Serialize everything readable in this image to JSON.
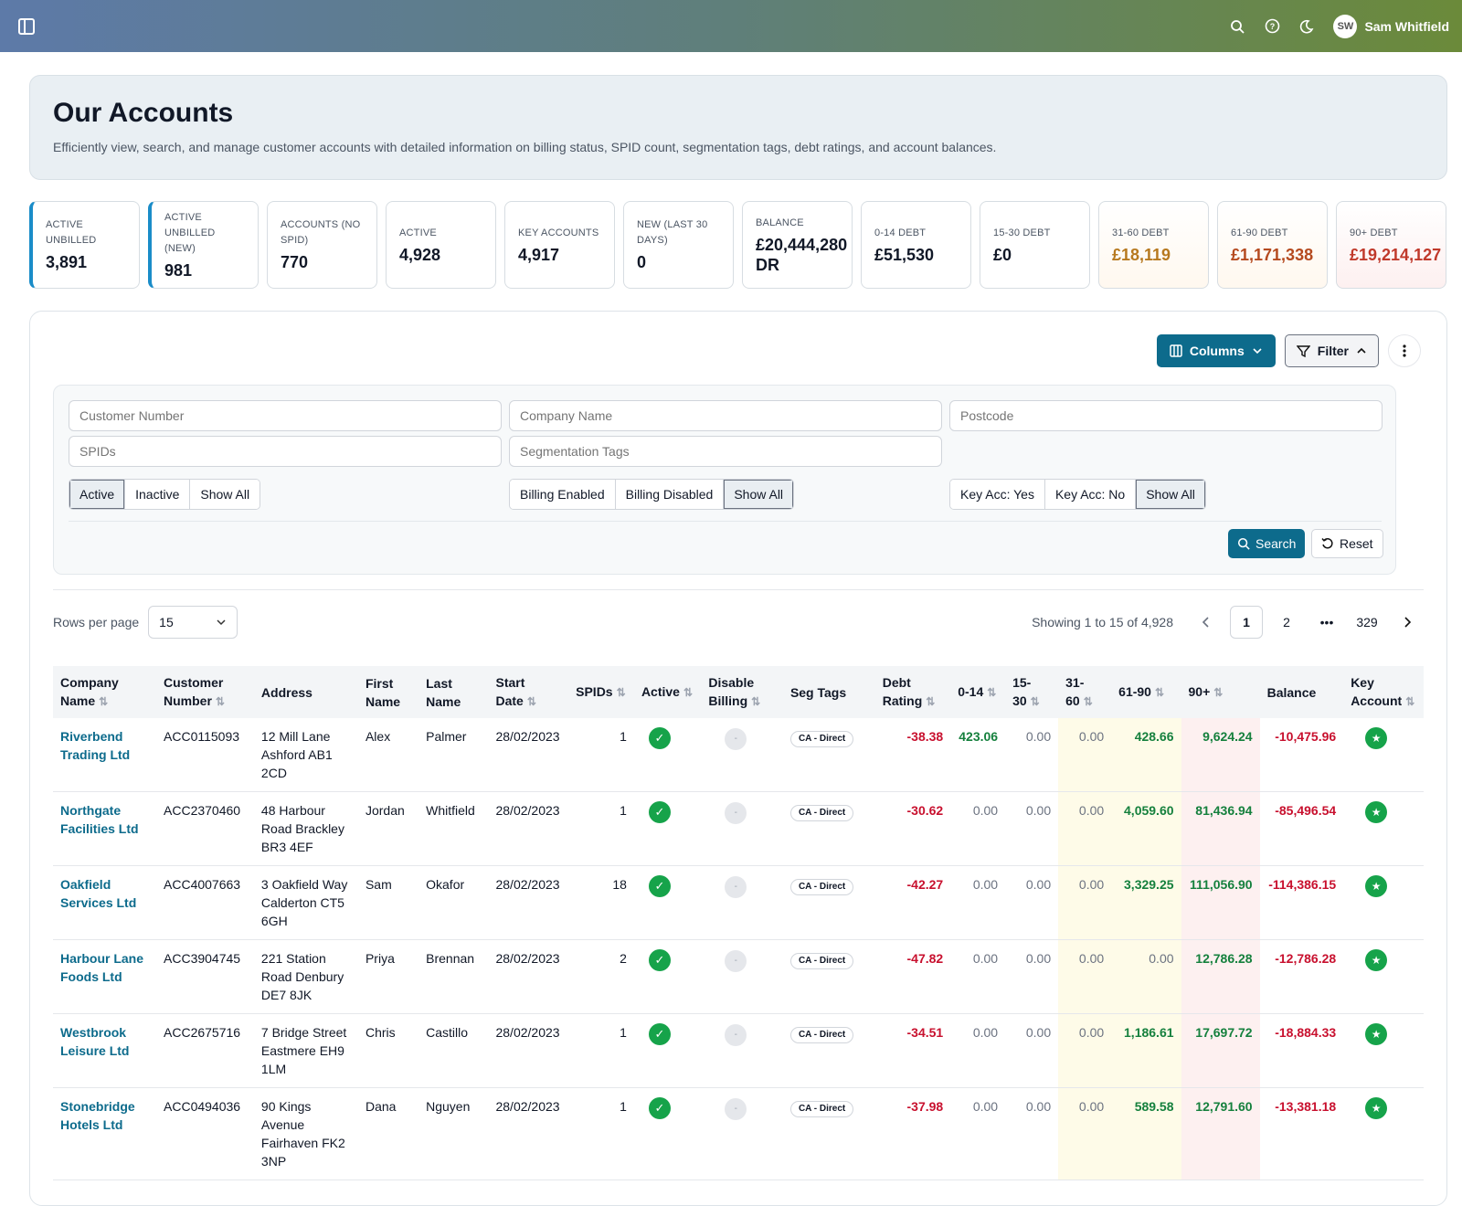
{
  "topbar": {
    "user_initials": "SW",
    "user_name": "Sam Whitfield",
    "icons": [
      "sidebar-toggle-icon",
      "search-icon",
      "help-icon",
      "moon-icon"
    ]
  },
  "hero": {
    "title": "Our Accounts",
    "description": "Efficiently view, search, and manage customer accounts with detailed information on billing status, SPID count, segmentation tags, debt ratings, and account balances."
  },
  "stats": [
    {
      "label": "ACTIVE UNBILLED",
      "value": "3,891"
    },
    {
      "label": "ACTIVE UNBILLED (NEW)",
      "value": "981"
    },
    {
      "label": "ACCOUNTS (NO SPID)",
      "value": "770"
    },
    {
      "label": "ACTIVE",
      "value": "4,928"
    },
    {
      "label": "KEY ACCOUNTS",
      "value": "4,917"
    },
    {
      "label": "NEW (LAST 30 DAYS)",
      "value": "0"
    },
    {
      "label": "BALANCE",
      "value": "£20,444,280 DR"
    },
    {
      "label": "0-14 DEBT",
      "value": "£51,530"
    },
    {
      "label": "15-30 DEBT",
      "value": "£0"
    },
    {
      "label": "31-60 DEBT",
      "value": "£18,119"
    },
    {
      "label": "61-90 DEBT",
      "value": "£1,171,338"
    },
    {
      "label": "90+ DEBT",
      "value": "£19,214,127"
    }
  ],
  "toolbar": {
    "columns_label": "Columns",
    "filter_label": "Filter"
  },
  "filters": {
    "customer_number_ph": "Customer Number",
    "company_name_ph": "Company Name",
    "postcode_ph": "Postcode",
    "spids_ph": "SPIDs",
    "seg_tags_ph": "Segmentation Tags",
    "status": [
      "Active",
      "Inactive",
      "Show All"
    ],
    "billing": [
      "Billing Enabled",
      "Billing Disabled",
      "Show All"
    ],
    "keyacc": [
      "Key Acc: Yes",
      "Key Acc: No",
      "Show All"
    ],
    "search_label": "Search",
    "reset_label": "Reset"
  },
  "pagination": {
    "rows_per_page_label": "Rows per page",
    "rows_per_page": "15",
    "showing": "Showing 1 to 15 of 4,928",
    "pages": [
      "1",
      "2",
      "•••",
      "329"
    ]
  },
  "table": {
    "headers": {
      "company": "Company Name",
      "custno": "Customer Number",
      "address": "Address",
      "first": "First Name",
      "last": "Last Name",
      "start": "Start Date",
      "spids": "SPIDs",
      "active": "Active",
      "disable": "Disable Billing",
      "seg": "Seg Tags",
      "rating": "Debt Rating",
      "d0": "0-14",
      "d15": "15-30",
      "d31": "31-60",
      "d61": "61-90",
      "d90": "90+",
      "balance": "Balance",
      "key": "Key Account"
    },
    "rows": [
      {
        "company": "Riverbend Trading Ltd",
        "custno": "ACC0115093",
        "address": "12 Mill Lane Ashford AB1 2CD",
        "first": "Alex",
        "last": "Palmer",
        "start": "28/02/2023",
        "spids": "1",
        "seg": "CA - Direct",
        "rating": "-38.38",
        "d0": "423.06",
        "d15": "0.00",
        "d31": "0.00",
        "d61": "428.66",
        "d90": "9,624.24",
        "balance": "-10,475.96"
      },
      {
        "company": "Northgate Facilities Ltd",
        "custno": "ACC2370460",
        "address": "48 Harbour Road Brackley BR3 4EF",
        "first": "Jordan",
        "last": "Whitfield",
        "start": "28/02/2023",
        "spids": "1",
        "seg": "CA - Direct",
        "rating": "-30.62",
        "d0": "0.00",
        "d15": "0.00",
        "d31": "0.00",
        "d61": "4,059.60",
        "d90": "81,436.94",
        "balance": "-85,496.54"
      },
      {
        "company": "Oakfield Services Ltd",
        "custno": "ACC4007663",
        "address": "3 Oakfield Way Calderton CT5 6GH",
        "first": "Sam",
        "last": "Okafor",
        "start": "28/02/2023",
        "spids": "18",
        "seg": "CA - Direct",
        "rating": "-42.27",
        "d0": "0.00",
        "d15": "0.00",
        "d31": "0.00",
        "d61": "3,329.25",
        "d90": "111,056.90",
        "balance": "-114,386.15"
      },
      {
        "company": "Harbour Lane Foods Ltd",
        "custno": "ACC3904745",
        "address": "221 Station Road Denbury DE7 8JK",
        "first": "Priya",
        "last": "Brennan",
        "start": "28/02/2023",
        "spids": "2",
        "seg": "CA - Direct",
        "rating": "-47.82",
        "d0": "0.00",
        "d15": "0.00",
        "d31": "0.00",
        "d61": "0.00",
        "d90": "12,786.28",
        "balance": "-12,786.28"
      },
      {
        "company": "Westbrook Leisure Ltd",
        "custno": "ACC2675716",
        "address": "7 Bridge Street Eastmere EH9 1LM",
        "first": "Chris",
        "last": "Castillo",
        "start": "28/02/2023",
        "spids": "1",
        "seg": "CA - Direct",
        "rating": "-34.51",
        "d0": "0.00",
        "d15": "0.00",
        "d31": "0.00",
        "d61": "1,186.61",
        "d90": "17,697.72",
        "balance": "-18,884.33"
      },
      {
        "company": "Stonebridge Hotels Ltd",
        "custno": "ACC0494036",
        "address": "90 Kings Avenue Fairhaven FK2 3NP",
        "first": "Dana",
        "last": "Nguyen",
        "start": "28/02/2023",
        "spids": "1",
        "seg": "CA - Direct",
        "rating": "-37.98",
        "d0": "0.00",
        "d15": "0.00",
        "d31": "0.00",
        "d61": "589.58",
        "d90": "12,791.60",
        "balance": "-13,381.18"
      }
    ]
  }
}
